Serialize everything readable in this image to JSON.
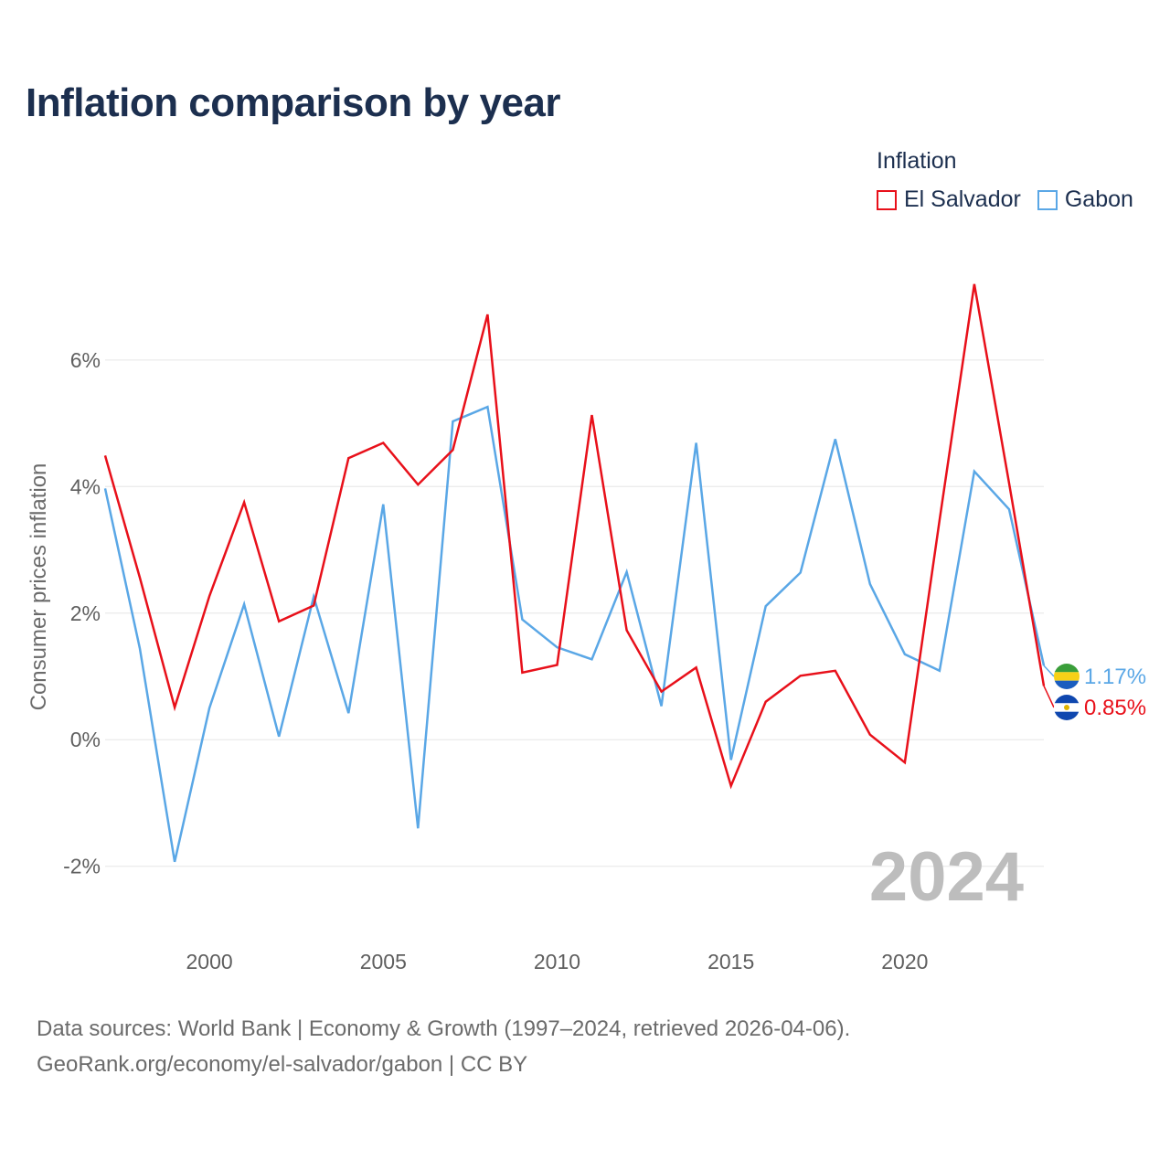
{
  "header": {
    "title": "Inflation comparison by year"
  },
  "legend": {
    "title": "Inflation",
    "items": [
      {
        "label": "El Salvador",
        "color": "#e8101a"
      },
      {
        "label": "Gabon",
        "color": "#5aa7e6"
      }
    ]
  },
  "watermark_year": "2024",
  "footer": {
    "line1": "Data sources: World Bank | Economy & Growth (1997–2024, retrieved 2026-04-06).",
    "line2": "GeoRank.org/economy/el-salvador/gabon | CC BY"
  },
  "chart_data": {
    "type": "line",
    "title": "Inflation comparison by year",
    "xlabel": "",
    "ylabel": "Consumer prices inflation",
    "xlim": [
      1997,
      2024
    ],
    "ylim": [
      -2.9,
      7.5
    ],
    "grid": true,
    "x_ticks": [
      2000,
      2005,
      2010,
      2015,
      2020
    ],
    "x_tick_labels": [
      "2000",
      "2005",
      "2010",
      "2015",
      "2020"
    ],
    "y_ticks": [
      -2,
      0,
      2,
      4,
      6
    ],
    "y_tick_labels": [
      "-2%",
      "0%",
      "2%",
      "4%",
      "6%"
    ],
    "x": [
      1997,
      1998,
      1999,
      2000,
      2001,
      2002,
      2003,
      2004,
      2005,
      2006,
      2007,
      2008,
      2009,
      2010,
      2011,
      2012,
      2013,
      2014,
      2015,
      2016,
      2017,
      2018,
      2019,
      2020,
      2021,
      2022,
      2023,
      2024
    ],
    "series": [
      {
        "name": "El Salvador",
        "color": "#e8101a",
        "end_label": "0.85%",
        "flag": "el-salvador-flag-icon",
        "values": [
          4.49,
          2.56,
          0.51,
          2.27,
          3.75,
          1.87,
          2.12,
          4.45,
          4.69,
          4.03,
          4.58,
          6.72,
          1.06,
          1.18,
          5.13,
          1.73,
          0.76,
          1.14,
          -0.73,
          0.6,
          1.01,
          1.09,
          0.08,
          -0.36,
          3.47,
          7.2,
          4.05,
          0.85
        ]
      },
      {
        "name": "Gabon",
        "color": "#5aa7e6",
        "end_label": "1.17%",
        "flag": "gabon-flag-icon",
        "values": [
          3.97,
          1.44,
          -1.93,
          0.5,
          2.14,
          0.05,
          2.26,
          0.42,
          3.72,
          -1.4,
          5.03,
          5.26,
          1.9,
          1.46,
          1.27,
          2.65,
          0.53,
          4.69,
          -0.32,
          2.11,
          2.64,
          4.75,
          2.46,
          1.35,
          1.09,
          4.24,
          3.64,
          1.17
        ]
      }
    ]
  }
}
